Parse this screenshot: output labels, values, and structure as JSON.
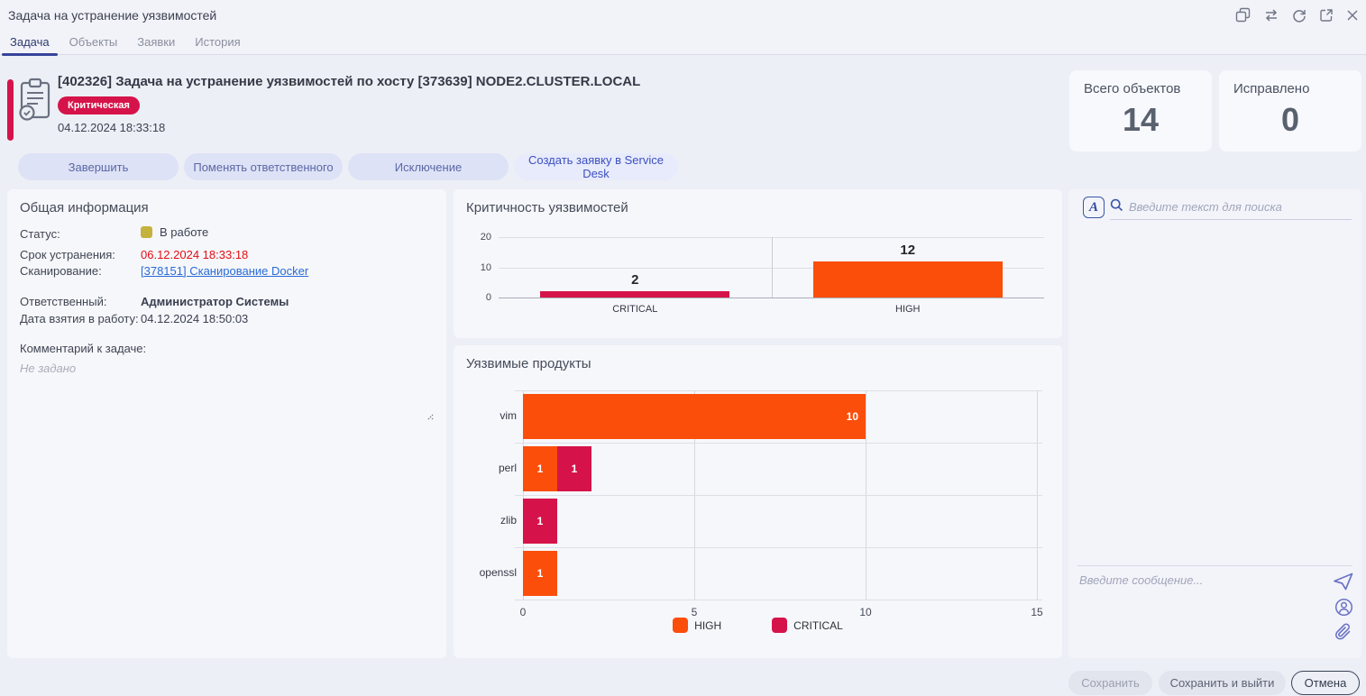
{
  "window": {
    "title": "Задача на устранение уязвимостей",
    "icon_names": [
      "copy-icon",
      "swap-icon",
      "refresh-icon",
      "expand-icon",
      "close-icon"
    ]
  },
  "tabs": {
    "items": [
      {
        "label": "Задача",
        "active": true
      },
      {
        "label": "Объекты",
        "active": false
      },
      {
        "label": "Заявки",
        "active": false
      },
      {
        "label": "История",
        "active": false
      }
    ]
  },
  "header": {
    "title": "[402326] Задача на устранение уязвимостей  по хосту [373639] NODE2.CLUSTER.LOCAL",
    "severity_badge": "Критическая",
    "created_datetime": "04.12.2024 18:33:18",
    "stats": [
      {
        "label": "Всего объектов",
        "value": "14"
      },
      {
        "label": "Исправлено",
        "value": "0"
      }
    ]
  },
  "actions": [
    "Завершить",
    "Поменять ответственного",
    "Исключение",
    "Создать заявку в Service Desk"
  ],
  "general_info": {
    "title": "Общая информация",
    "status_label": "Статус:",
    "status_value": "В работе",
    "status_color": "#c4b23c",
    "deadline_label": "Срок устранения:",
    "deadline_value": "06.12.2024 18:33:18",
    "scan_label": "Сканирование:",
    "scan_link": "[378151] Сканирование Docker",
    "assignee_label": "Ответственный:",
    "assignee_value": "Администратор Системы",
    "taken_label": "Дата взятия в работу:",
    "taken_value": "04.12.2024 18:50:03",
    "comment_label": "Комментарий к задаче:",
    "comment_placeholder": "Не задано"
  },
  "chart_data": [
    {
      "type": "bar",
      "title": "Критичность уязвимостей",
      "categories": [
        "CRITICAL",
        "HIGH"
      ],
      "values": [
        2,
        12
      ],
      "colors": [
        "#d5134a",
        "#fb4e0b"
      ],
      "ylim": [
        0,
        20
      ],
      "yticks": [
        0,
        10,
        20
      ],
      "grid": true,
      "value_labels": true,
      "legend_position": "none"
    },
    {
      "type": "bar-horizontal-stacked",
      "title": "Уязвимые продукты",
      "categories": [
        "vim",
        "perl",
        "zlib",
        "openssl"
      ],
      "series": [
        {
          "name": "HIGH",
          "color": "#fb4e0b",
          "values": [
            10,
            1,
            0,
            1
          ]
        },
        {
          "name": "CRITICAL",
          "color": "#d5134a",
          "values": [
            0,
            1,
            1,
            0
          ]
        }
      ],
      "xlim": [
        0,
        15
      ],
      "xticks": [
        0,
        5,
        10,
        15
      ],
      "grid": true,
      "value_labels": true,
      "legend_position": "bottom",
      "legend": [
        "HIGH",
        "CRITICAL"
      ]
    }
  ],
  "search": {
    "placeholder": "Введите текст для поиска"
  },
  "chat": {
    "message_placeholder": "Введите сообщение..."
  },
  "footer": {
    "save": "Сохранить",
    "save_and_exit": "Сохранить и выйти",
    "cancel": "Отмена"
  },
  "colors": {
    "critical": "#d5134a",
    "high": "#fb4e0b",
    "status_in_progress": "#c4b23c",
    "deadline_red": "#e30e13",
    "link_blue": "#2a6bd6",
    "accent_tab": "#36439a"
  }
}
